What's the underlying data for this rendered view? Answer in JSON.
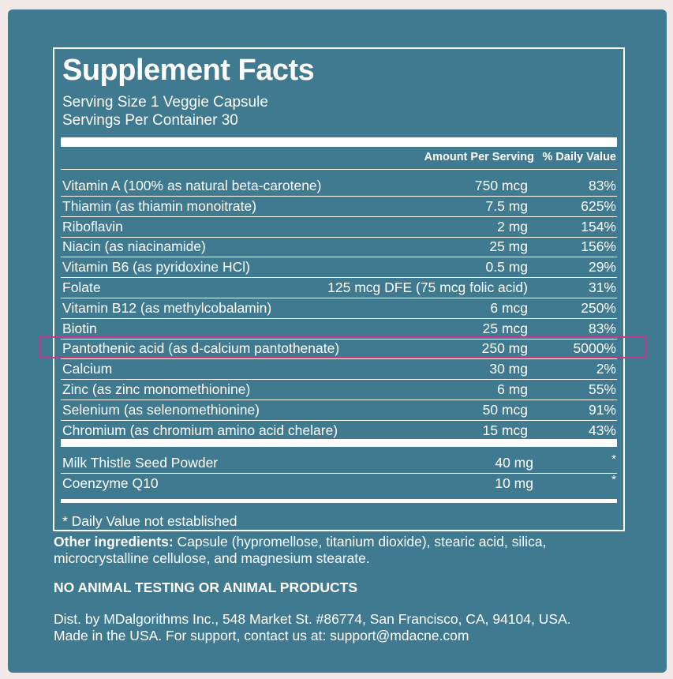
{
  "title": "Supplement Facts",
  "serving_size": "Serving Size 1 Veggie Capsule",
  "servings_per_container": "Servings Per Container 30",
  "headers": {
    "amount": "Amount Per Serving",
    "daily_value": "% Daily Value"
  },
  "nutrients": [
    {
      "name": "Vitamin A (100% as natural beta-carotene)",
      "amount": "750 mcg",
      "dv": "83%"
    },
    {
      "name": "Thiamin (as thiamin monoitrate)",
      "amount": "7.5 mg",
      "dv": "625%"
    },
    {
      "name": "Riboflavin",
      "amount": "2 mg",
      "dv": "154%"
    },
    {
      "name": "Niacin (as niacinamide)",
      "amount": "25 mg",
      "dv": "156%"
    },
    {
      "name": "Vitamin B6 (as pyridoxine HCl)",
      "amount": "0.5 mg",
      "dv": "29%"
    },
    {
      "name": "Folate",
      "amount": "125 mcg DFE (75 mcg folic acid)",
      "dv": "31%"
    },
    {
      "name": "Vitamin B12 (as methylcobalamin)",
      "amount": "6 mcg",
      "dv": "250%"
    },
    {
      "name": "Biotin",
      "amount": "25 mcg",
      "dv": "83%"
    },
    {
      "name": "Pantothenic acid (as d-calcium pantothenate)",
      "amount": "250 mg",
      "dv": "5000%"
    },
    {
      "name": "Calcium",
      "amount": "30 mg",
      "dv": "2%"
    },
    {
      "name": "Zinc (as zinc monomethionine)",
      "amount": "6 mg",
      "dv": "55%"
    },
    {
      "name": "Selenium (as selenomethionine)",
      "amount": "50 mcg",
      "dv": "91%"
    },
    {
      "name": "Chromium (as chromium amino acid chelare)",
      "amount": "15 mcg",
      "dv": "43%"
    }
  ],
  "other_items": [
    {
      "name": "Milk Thistle Seed Powder",
      "amount": "40 mg",
      "dv": "*"
    },
    {
      "name": "Coenzyme Q10",
      "amount": "10 mg",
      "dv": "*"
    }
  ],
  "footnote": "* Daily Value not established",
  "other_ingredients_label": "Other ingredients:",
  "other_ingredients_text": " Capsule (hypromellose, titanium dioxide), stearic acid, silica, microcrystalline cellulose, and magnesium stearate.",
  "warning": "NO ANIMAL TESTING OR ANIMAL PRODUCTS",
  "distribution_line1": "Dist. by MDalgorithms Inc., 548 Market St. #86774, San Francisco, CA, 94104, USA.",
  "distribution_line2": "Made in the USA. For support, contact us at: support@mdacne.com",
  "colors": {
    "background": "#3f7a91",
    "page": "#f1e9e7",
    "highlight": "#c4388f"
  }
}
